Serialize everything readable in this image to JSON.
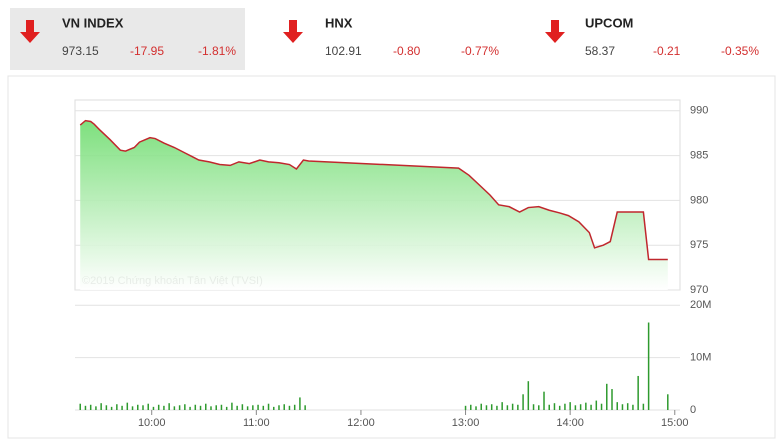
{
  "header": {
    "indices": [
      {
        "name": "VN INDEX",
        "value": "973.15",
        "change": "-17.95",
        "percent": "-1.81%"
      },
      {
        "name": "HNX",
        "value": "102.91",
        "change": "-0.80",
        "percent": "-0.77%"
      },
      {
        "name": "UPCOM",
        "value": "58.37",
        "change": "-0.21",
        "percent": "-0.35%"
      }
    ]
  },
  "chart_data": [
    {
      "type": "area",
      "color": "#c0272d",
      "fill": "#6fdc6f",
      "annotation": "©2019 Chứng khoán Tân Việt (TVSI)",
      "x": [
        559,
        562,
        565,
        567,
        570,
        576,
        582,
        585,
        590,
        593,
        599,
        602,
        607,
        613,
        619,
        623,
        627,
        633,
        639,
        645,
        650,
        656,
        662,
        667,
        673,
        679,
        683,
        687,
        690,
        776,
        782,
        788,
        794,
        799,
        805,
        811,
        816,
        822,
        828,
        834,
        839,
        845,
        851,
        854,
        859,
        863,
        867,
        872,
        879,
        882,
        885,
        896
      ],
      "values": [
        988.4,
        988.9,
        988.8,
        988.5,
        987.9,
        986.8,
        985.6,
        985.5,
        985.9,
        986.5,
        987.0,
        986.9,
        986.4,
        985.9,
        985.3,
        984.9,
        984.5,
        984.3,
        984.0,
        983.9,
        984.3,
        984.1,
        984.5,
        984.3,
        984.2,
        984.0,
        983.5,
        984.5,
        984.4,
        983.6,
        982.8,
        981.7,
        980.6,
        979.5,
        979.3,
        978.7,
        979.2,
        979.3,
        978.9,
        978.6,
        978.3,
        977.6,
        976.4,
        974.7,
        975.0,
        975.4,
        978.7,
        978.7,
        978.7,
        978.7,
        973.4,
        973.4
      ],
      "xlim": [
        556,
        903
      ],
      "ylim": [
        970,
        991.2
      ],
      "yticks": [
        970,
        975,
        980,
        985,
        990
      ],
      "grid": true
    },
    {
      "type": "bar",
      "color": "#2e9a2e",
      "x": [
        559,
        562,
        565,
        568,
        571,
        574,
        577,
        580,
        583,
        586,
        589,
        592,
        595,
        598,
        601,
        604,
        607,
        610,
        613,
        616,
        619,
        622,
        625,
        628,
        631,
        634,
        637,
        640,
        643,
        646,
        649,
        652,
        655,
        658,
        661,
        664,
        667,
        670,
        673,
        676,
        679,
        682,
        685,
        688,
        780,
        783,
        786,
        789,
        792,
        795,
        798,
        801,
        804,
        807,
        810,
        813,
        816,
        819,
        822,
        825,
        828,
        831,
        834,
        837,
        840,
        843,
        846,
        849,
        852,
        855,
        858,
        861,
        864,
        867,
        870,
        873,
        876,
        879,
        882,
        885,
        896
      ],
      "values": [
        1.2,
        0.8,
        1.0,
        0.7,
        1.3,
        0.9,
        0.6,
        1.1,
        0.8,
        1.4,
        0.7,
        1.0,
        0.9,
        1.2,
        0.6,
        1.0,
        0.8,
        1.3,
        0.7,
        0.9,
        1.1,
        0.6,
        1.0,
        0.8,
        1.2,
        0.7,
        0.9,
        1.0,
        0.6,
        1.4,
        0.8,
        1.1,
        0.7,
        0.9,
        1.0,
        0.8,
        1.2,
        0.6,
        0.9,
        1.1,
        0.8,
        1.0,
        2.4,
        0.9,
        0.8,
        1.0,
        0.7,
        1.2,
        0.9,
        1.1,
        0.8,
        1.5,
        0.9,
        1.2,
        1.0,
        3.0,
        5.5,
        1.1,
        0.9,
        3.5,
        1.0,
        1.3,
        0.8,
        1.2,
        1.5,
        0.9,
        1.1,
        1.4,
        1.0,
        1.8,
        1.2,
        5.0,
        4.0,
        1.5,
        1.1,
        1.3,
        1.0,
        6.5,
        1.2,
        16.7,
        3.0
      ],
      "xlim": [
        556,
        903
      ],
      "ylim": [
        0,
        21
      ],
      "yticks": [
        0,
        {
          "value": 10,
          "label": "10M"
        },
        {
          "value": 20,
          "label": "20M"
        }
      ],
      "xticks": [
        {
          "value": 600,
          "label": "10:00"
        },
        {
          "value": 660,
          "label": "11:00"
        },
        {
          "value": 720,
          "label": "12:00"
        },
        {
          "value": 780,
          "label": "13:00"
        },
        {
          "value": 840,
          "label": "14:00"
        },
        {
          "value": 900,
          "label": "15:00"
        }
      ],
      "grid": true
    }
  ]
}
